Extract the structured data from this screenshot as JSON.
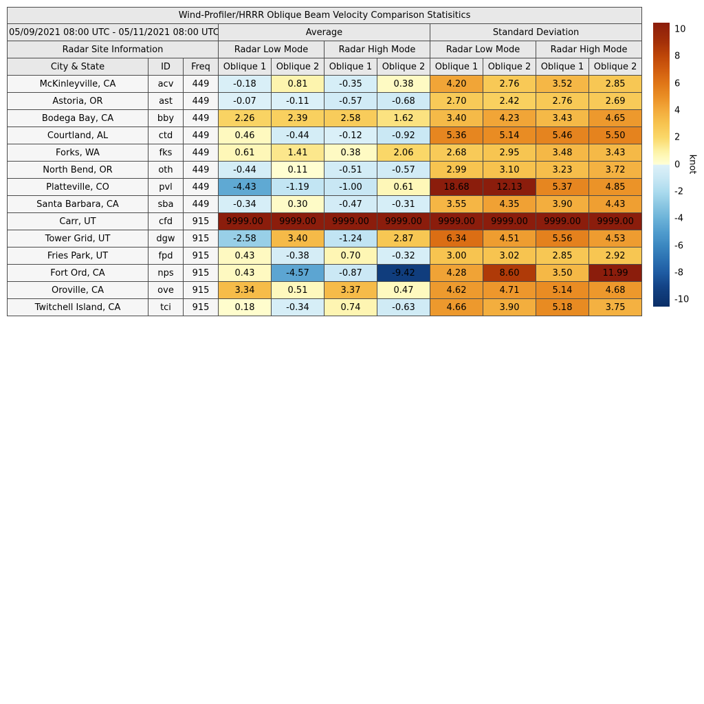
{
  "chart_data": {
    "type": "table",
    "title": "Wind-Profiler/HRRR Oblique Beam Velocity Comparison Statisitics",
    "date_range": "05/09/2021 08:00 UTC - 05/11/2021 08:00 UTC",
    "group_headers": {
      "site_info": "Radar Site Information",
      "average": "Average",
      "std_dev": "Standard Deviation",
      "low_mode": "Radar Low Mode",
      "high_mode": "Radar High Mode"
    },
    "column_headers": {
      "city": "City & State",
      "id": "ID",
      "freq": "Freq",
      "oblique1": "Oblique 1",
      "oblique2": "Oblique 2"
    },
    "rows": [
      {
        "city": "McKinleyville, CA",
        "id": "acv",
        "freq": "449",
        "values": [
          -0.18,
          0.81,
          -0.35,
          0.38,
          4.2,
          2.76,
          3.52,
          2.85
        ]
      },
      {
        "city": "Astoria, OR",
        "id": "ast",
        "freq": "449",
        "values": [
          -0.07,
          -0.11,
          -0.57,
          -0.68,
          2.7,
          2.42,
          2.76,
          2.69
        ]
      },
      {
        "city": "Bodega Bay, CA",
        "id": "bby",
        "freq": "449",
        "values": [
          2.26,
          2.39,
          2.58,
          1.62,
          3.4,
          4.23,
          3.43,
          4.65
        ]
      },
      {
        "city": "Courtland, AL",
        "id": "ctd",
        "freq": "449",
        "values": [
          0.46,
          -0.44,
          -0.12,
          -0.92,
          5.36,
          5.14,
          5.46,
          5.5
        ]
      },
      {
        "city": "Forks, WA",
        "id": "fks",
        "freq": "449",
        "values": [
          0.61,
          1.41,
          0.38,
          2.06,
          2.68,
          2.95,
          3.48,
          3.43
        ]
      },
      {
        "city": "North Bend, OR",
        "id": "oth",
        "freq": "449",
        "values": [
          -0.44,
          0.11,
          -0.51,
          -0.57,
          2.99,
          3.1,
          3.23,
          3.72
        ]
      },
      {
        "city": "Platteville, CO",
        "id": "pvl",
        "freq": "449",
        "values": [
          -4.43,
          -1.19,
          -1.0,
          0.61,
          18.68,
          12.13,
          5.37,
          4.85
        ]
      },
      {
        "city": "Santa Barbara, CA",
        "id": "sba",
        "freq": "449",
        "values": [
          -0.34,
          0.3,
          -0.47,
          -0.31,
          3.55,
          4.35,
          3.9,
          4.43
        ]
      },
      {
        "city": "Carr, UT",
        "id": "cfd",
        "freq": "915",
        "values": [
          9999.0,
          9999.0,
          9999.0,
          9999.0,
          9999.0,
          9999.0,
          9999.0,
          9999.0
        ]
      },
      {
        "city": "Tower Grid, UT",
        "id": "dgw",
        "freq": "915",
        "values": [
          -2.58,
          3.4,
          -1.24,
          2.87,
          6.34,
          4.51,
          5.56,
          4.53
        ]
      },
      {
        "city": "Fries Park, UT",
        "id": "fpd",
        "freq": "915",
        "values": [
          0.43,
          -0.38,
          0.7,
          -0.32,
          3.0,
          3.02,
          2.85,
          2.92
        ]
      },
      {
        "city": "Fort Ord, CA",
        "id": "nps",
        "freq": "915",
        "values": [
          0.43,
          -4.57,
          -0.87,
          -9.42,
          4.28,
          8.6,
          3.5,
          11.99
        ]
      },
      {
        "city": "Oroville, CA",
        "id": "ove",
        "freq": "915",
        "values": [
          3.34,
          0.51,
          3.37,
          0.47,
          4.62,
          4.71,
          5.14,
          4.68
        ]
      },
      {
        "city": "Twitchell Island, CA",
        "id": "tci",
        "freq": "915",
        "values": [
          0.18,
          -0.34,
          0.74,
          -0.63,
          4.66,
          3.9,
          5.18,
          3.75
        ]
      }
    ],
    "colorbar": {
      "label": "knot",
      "ticks": [
        10,
        8,
        6,
        4,
        2,
        0,
        -2,
        -4,
        -6,
        -8,
        -10
      ],
      "vmin": -10.5,
      "vmax": 10.5,
      "positive_stops": [
        [
          0.0,
          "#ffffd6"
        ],
        [
          1.0,
          "#fdf2a5"
        ],
        [
          2.0,
          "#fad869"
        ],
        [
          3.0,
          "#f7c450"
        ],
        [
          4.0,
          "#f3ab3c"
        ],
        [
          5.0,
          "#ea8f25"
        ],
        [
          6.0,
          "#e07617"
        ],
        [
          7.0,
          "#d15d0f"
        ],
        [
          8.0,
          "#bf4708"
        ],
        [
          9.0,
          "#a53108"
        ],
        [
          10.5,
          "#8b1d0c"
        ]
      ],
      "negative_stops": [
        [
          0.0,
          "#ddf1f8"
        ],
        [
          1.0,
          "#c8e7f4"
        ],
        [
          2.0,
          "#abdbee"
        ],
        [
          3.0,
          "#8ac6e2"
        ],
        [
          4.0,
          "#6bb2d8"
        ],
        [
          5.0,
          "#509ccd"
        ],
        [
          6.0,
          "#3b87c0"
        ],
        [
          7.0,
          "#2b71b2"
        ],
        [
          8.0,
          "#1e5ba2"
        ],
        [
          9.0,
          "#134386"
        ],
        [
          10.5,
          "#0a2e66"
        ]
      ]
    }
  }
}
